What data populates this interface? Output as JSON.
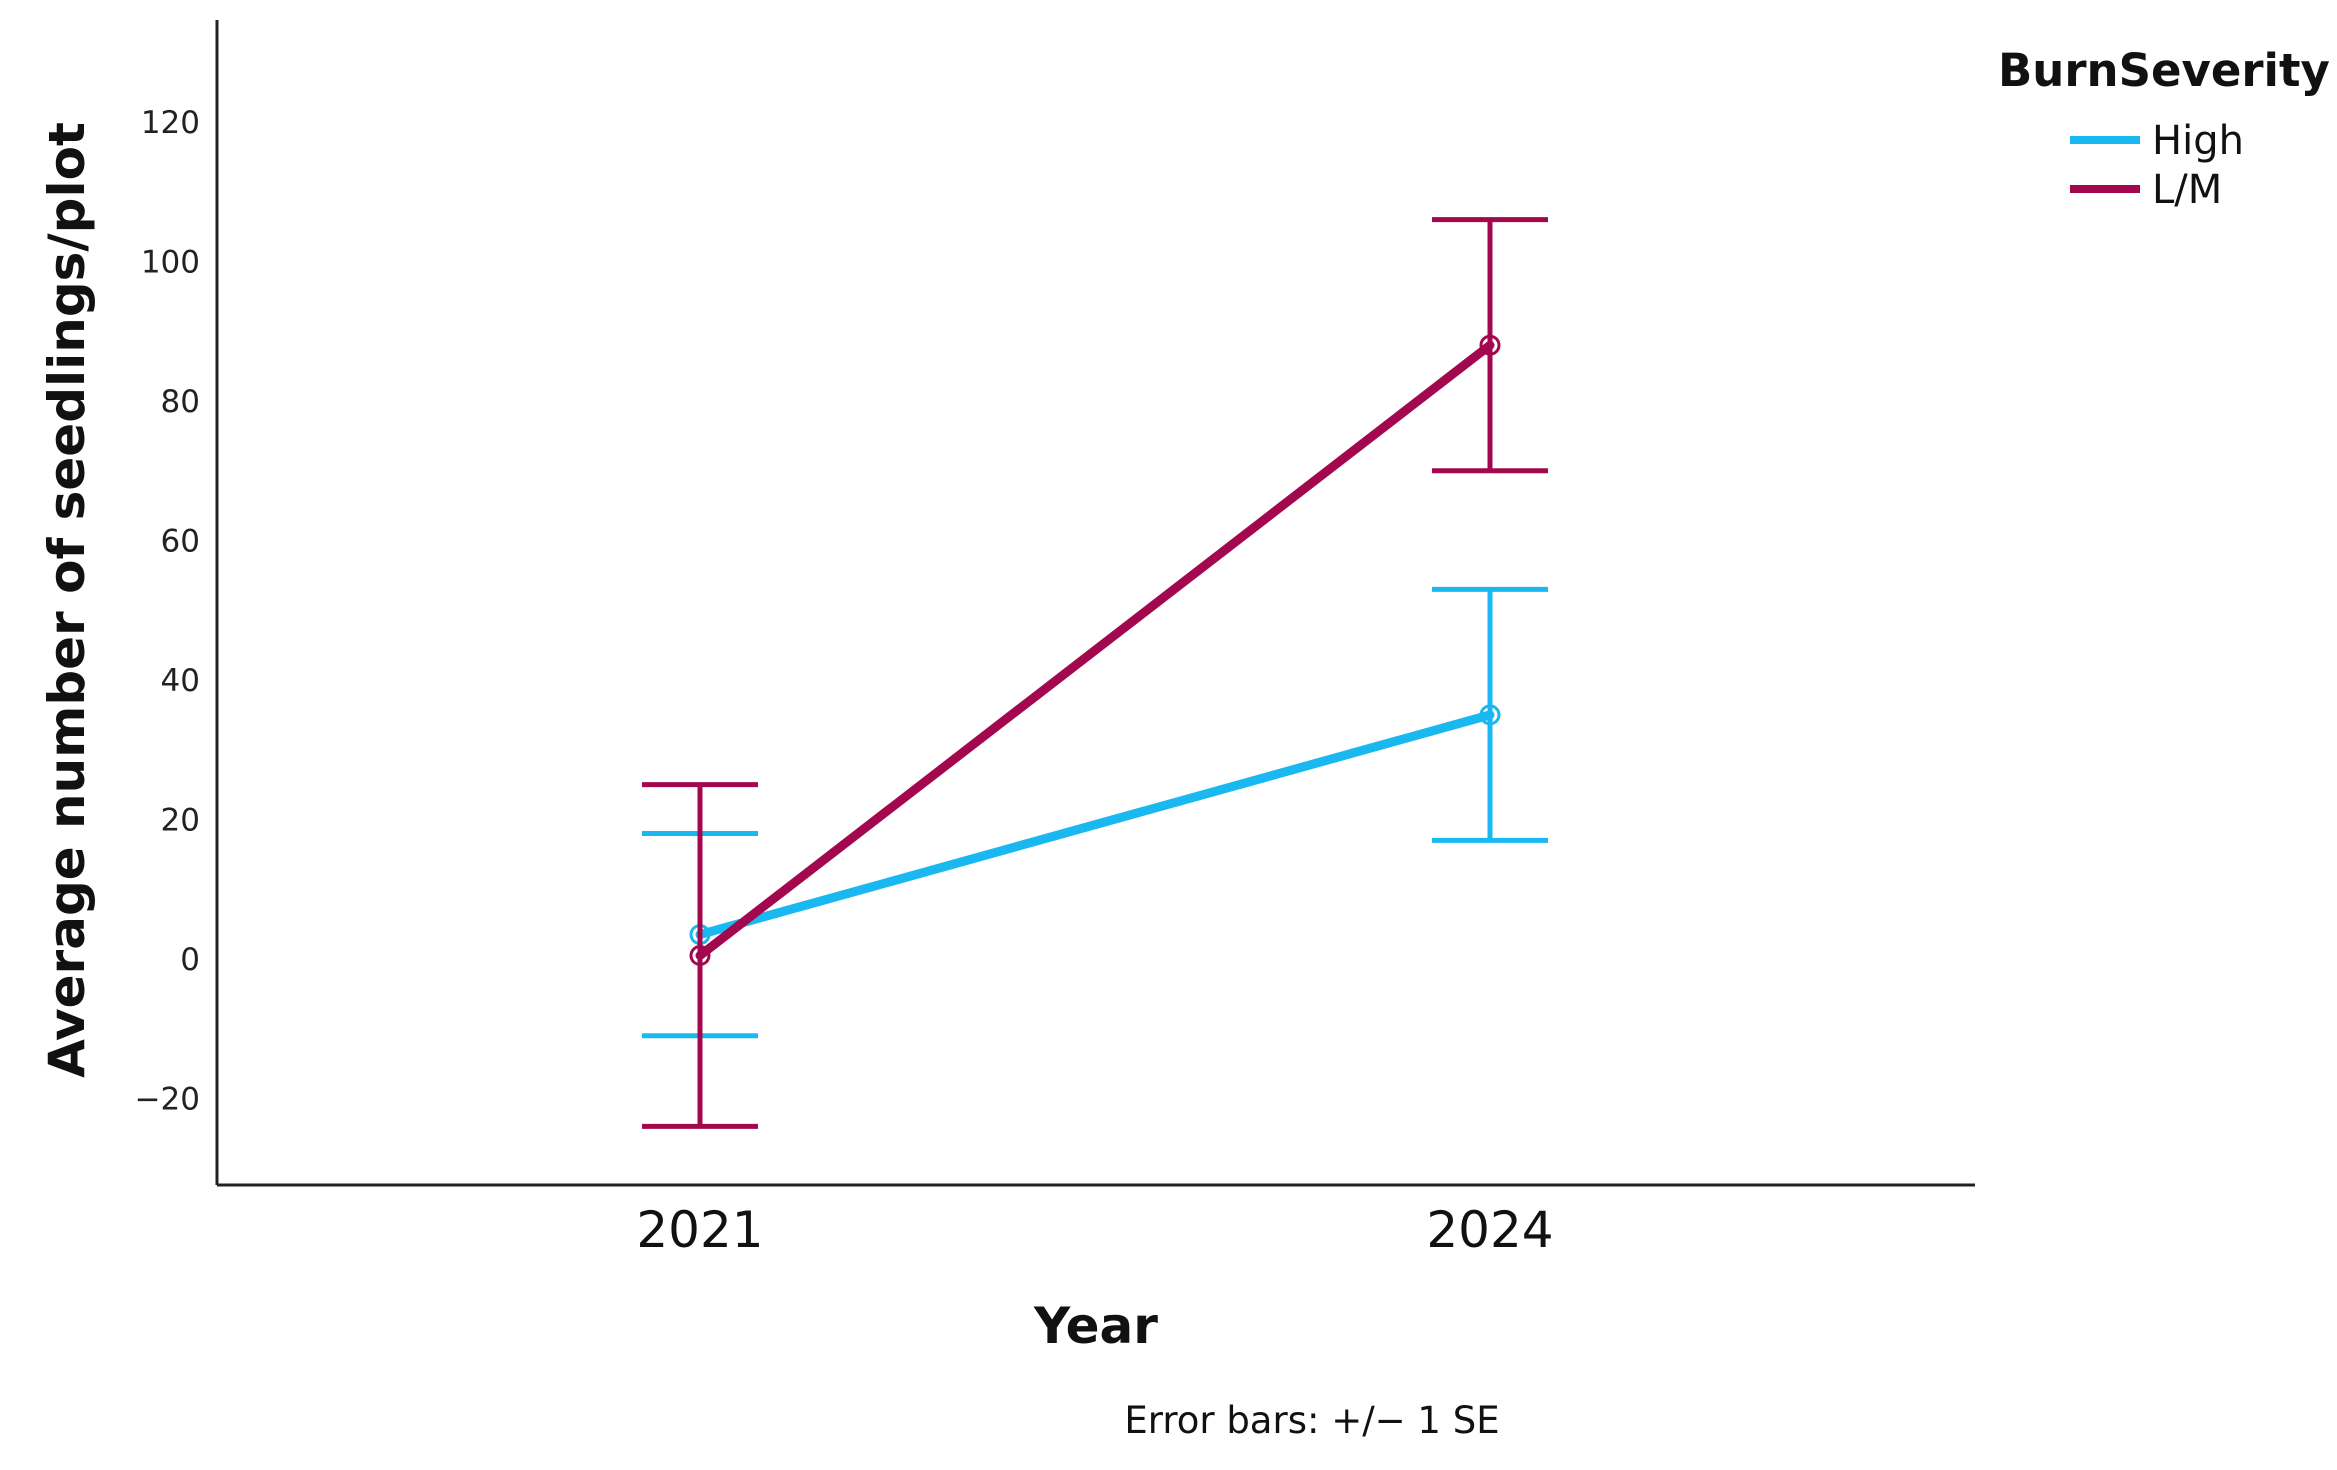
{
  "chart_data": {
    "type": "line",
    "xlabel": "Year",
    "ylabel": "Average number of seedlings/plot",
    "categories": [
      "2021",
      "2024"
    ],
    "yticks": [
      -20,
      0,
      20,
      40,
      60,
      80,
      100,
      120
    ],
    "ylim": [
      -32,
      135
    ],
    "grid": false,
    "legend": {
      "title": "BurnSeverity",
      "placement": "top-right",
      "entries": [
        "High",
        "L/M"
      ]
    },
    "series": [
      {
        "name": "High",
        "color": "#1ab8f0",
        "values": [
          3.5,
          35
        ],
        "lower": [
          -11,
          17
        ],
        "upper": [
          18,
          53
        ]
      },
      {
        "name": "L/M",
        "color": "#a3084e",
        "values": [
          0.5,
          88
        ],
        "lower": [
          -24,
          70
        ],
        "upper": [
          25,
          106
        ]
      }
    ],
    "note": "Error bars: +/− 1 SE"
  }
}
